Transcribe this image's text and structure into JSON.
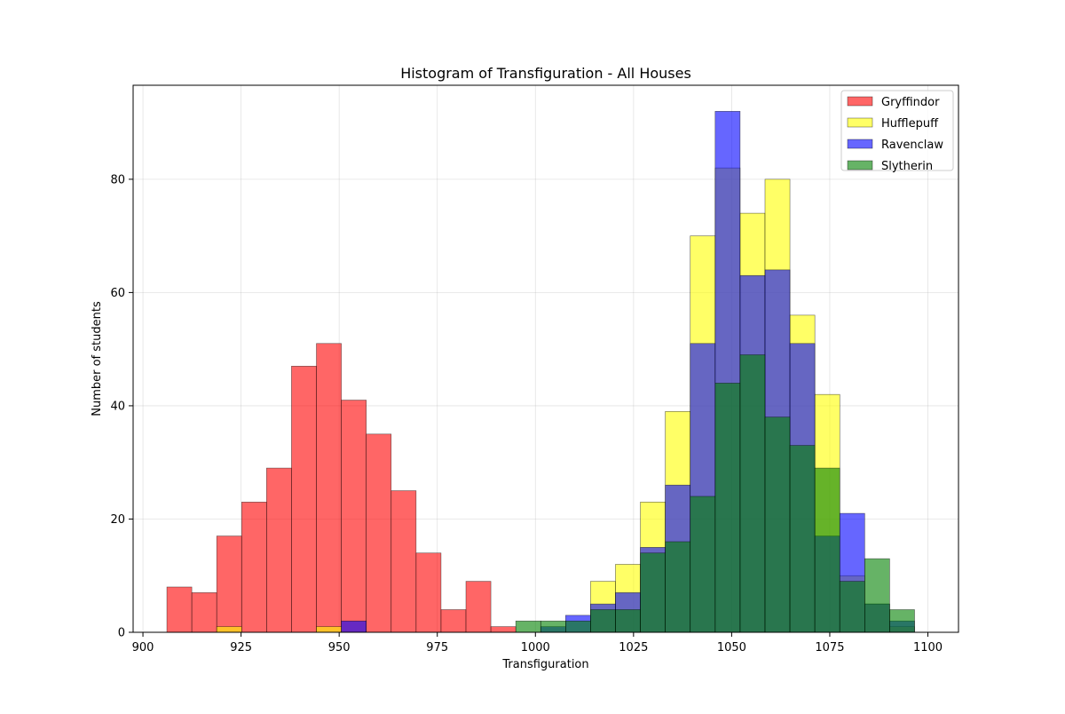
{
  "chart_data": {
    "type": "bar",
    "title": "Histogram of Transfiguration - All Houses",
    "xlabel": "Transfiguration",
    "ylabel": "Number of students",
    "xlim": [
      897.5,
      1107.8
    ],
    "ylim": [
      0,
      96.6
    ],
    "xticks": [
      900,
      925,
      950,
      975,
      1000,
      1025,
      1050,
      1075,
      1100
    ],
    "yticks": [
      0,
      20,
      40,
      60,
      80
    ],
    "grid": true,
    "legend_position": "top-right",
    "bin_start": 906.1,
    "bin_width": 6.35,
    "series": [
      {
        "name": "Gryffindor",
        "color": "#ff0000",
        "alpha": 0.6,
        "counts": [
          8,
          7,
          17,
          23,
          29,
          47,
          51,
          41,
          35,
          25,
          14,
          4,
          9,
          1,
          0,
          0,
          0,
          0,
          0,
          0,
          0,
          0,
          0,
          0,
          0,
          0,
          0,
          0,
          0,
          0
        ]
      },
      {
        "name": "Hufflepuff",
        "color": "#ffff00",
        "alpha": 0.6,
        "counts": [
          0,
          0,
          1,
          0,
          0,
          0,
          1,
          0,
          0,
          0,
          0,
          0,
          0,
          0,
          0,
          0,
          0,
          9,
          12,
          23,
          39,
          70,
          82,
          74,
          80,
          56,
          42,
          10,
          5,
          1
        ]
      },
      {
        "name": "Ravenclaw",
        "color": "#0000ff",
        "alpha": 0.6,
        "counts": [
          0,
          0,
          0,
          0,
          0,
          0,
          0,
          2,
          0,
          0,
          0,
          0,
          0,
          0,
          0,
          1,
          3,
          5,
          7,
          15,
          26,
          51,
          92,
          63,
          64,
          51,
          17,
          21,
          5,
          2
        ]
      },
      {
        "name": "Slytherin",
        "color": "#008000",
        "alpha": 0.6,
        "counts": [
          0,
          0,
          0,
          0,
          0,
          0,
          0,
          0,
          0,
          0,
          0,
          0,
          0,
          0,
          2,
          2,
          2,
          4,
          4,
          14,
          16,
          24,
          44,
          49,
          38,
          33,
          29,
          9,
          13,
          4
        ]
      }
    ]
  }
}
